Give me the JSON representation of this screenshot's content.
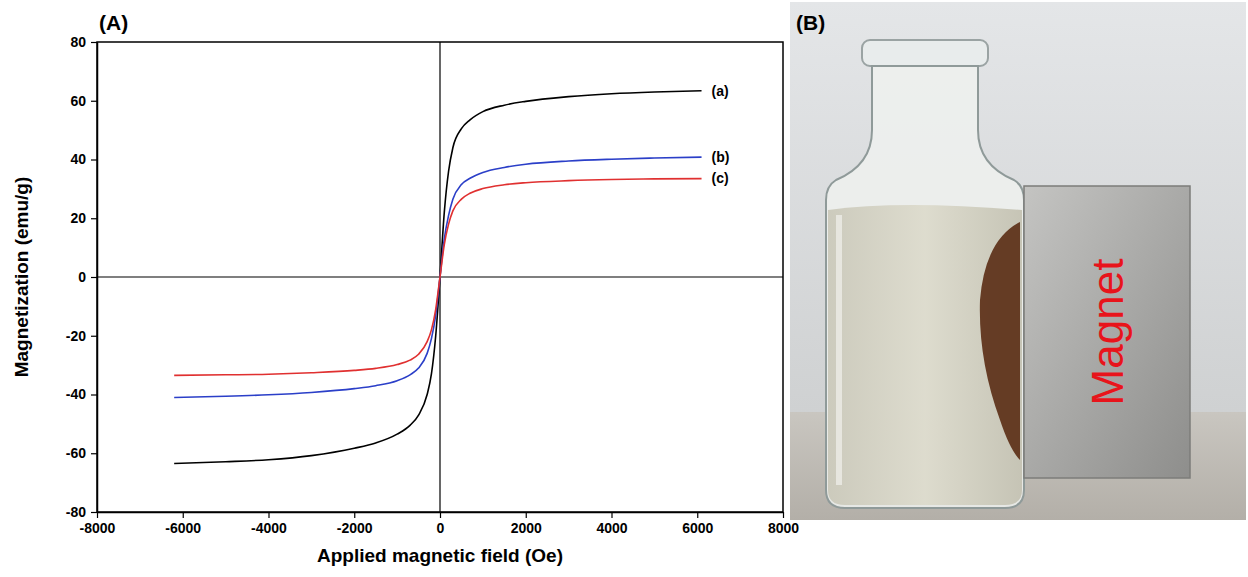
{
  "chart_data": {
    "type": "line",
    "title": "(A)",
    "x_label": "Applied magnetic field (Oe)",
    "y_label": "Magnetization (emu/g)",
    "x": [
      -6200,
      -5000,
      -4000,
      -3000,
      -2000,
      -1500,
      -1000,
      -700,
      -500,
      -300,
      -200,
      -100,
      0,
      100,
      200,
      300,
      500,
      700,
      1000,
      1500,
      2000,
      3000,
      4000,
      5000,
      6100
    ],
    "series": [
      {
        "name": "(a)",
        "color": "#000000",
        "values": [
          -63.5,
          -62.9,
          -62.2,
          -60.8,
          -58.3,
          -56.5,
          -53.5,
          -50.5,
          -47,
          -40,
          -33,
          -20,
          0,
          22,
          36,
          44,
          50.5,
          53.5,
          56.3,
          58.5,
          59.8,
          61.4,
          62.4,
          63,
          63.4
        ]
      },
      {
        "name": "(b)",
        "color": "#2b3fc8",
        "values": [
          -41,
          -40.6,
          -40.1,
          -39.3,
          -38,
          -37,
          -35.3,
          -33.3,
          -31,
          -26,
          -21,
          -13,
          0,
          13,
          21,
          26.5,
          31.5,
          33.6,
          35.6,
          37.3,
          38.4,
          39.5,
          40.1,
          40.5,
          40.8
        ]
      },
      {
        "name": "(c)",
        "color": "#e03030",
        "values": [
          -33.5,
          -33.3,
          -33.1,
          -32.6,
          -31.8,
          -31.1,
          -29.8,
          -28.3,
          -26.3,
          -22,
          -18,
          -11,
          0,
          11,
          18,
          22.5,
          26.5,
          28.5,
          30.1,
          31.4,
          32.1,
          32.8,
          33.2,
          33.4,
          33.5
        ]
      }
    ],
    "xlim": [
      -8000,
      8000
    ],
    "xticks": [
      -8000,
      -6000,
      -4000,
      -2000,
      0,
      2000,
      4000,
      6000,
      8000
    ],
    "ylim": [
      -80,
      80
    ],
    "yticks": [
      -80,
      -60,
      -40,
      -20,
      0,
      20,
      40,
      60,
      80
    ],
    "grid": false
  },
  "photo": {
    "panel_label": "(B)",
    "magnet_label": "Magnet"
  }
}
